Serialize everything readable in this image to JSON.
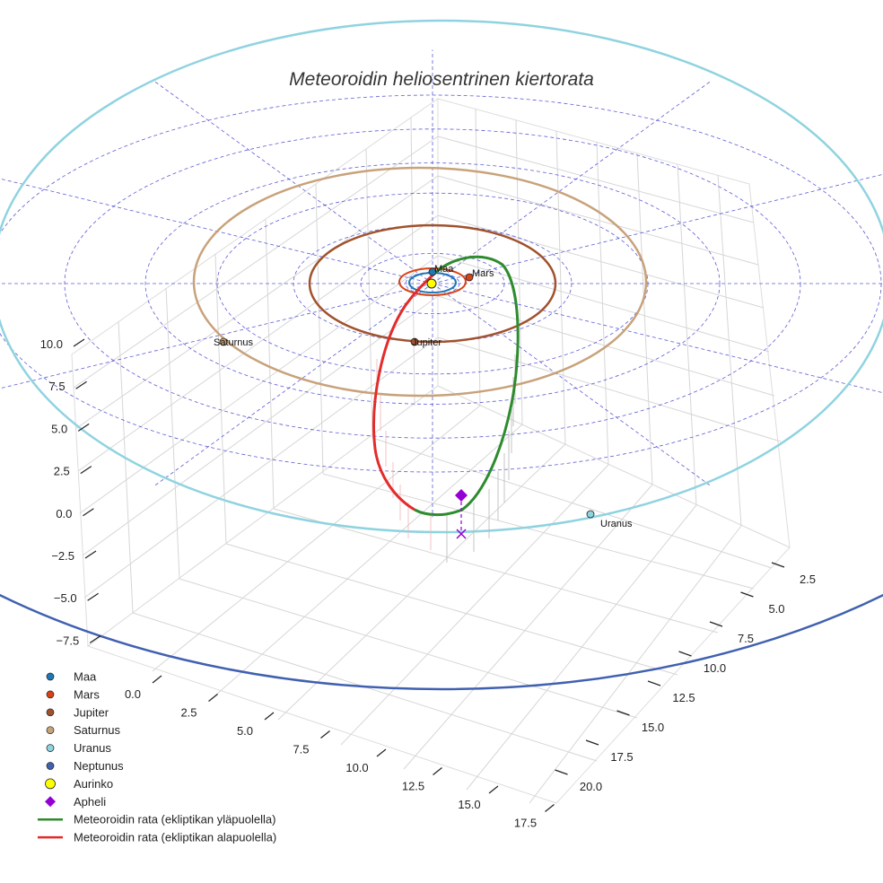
{
  "chart_data": {
    "type": "3d-orbit",
    "title": "Meteoroidin heliosentrinen kiertorata",
    "colors": {
      "Maa": "#1f77b4",
      "Mars": "#d84315",
      "Jupiter": "#a0522d",
      "Saturnus": "#c8a27a",
      "Uranus": "#8fd3e0",
      "Neptunus": "#4060b0",
      "Aurinko": "#ffff00",
      "Apheli": "#9400d3",
      "above": "#2e8b2e",
      "below": "#e32b2b",
      "grid": "#3333cc"
    },
    "planets": [
      {
        "name": "Maa",
        "label": "Maa"
      },
      {
        "name": "Mars",
        "label": "Mars"
      },
      {
        "name": "Jupiter",
        "label": "Jupiter"
      },
      {
        "name": "Saturnus",
        "label": "Saturnus"
      },
      {
        "name": "Uranus",
        "label": "Uranus"
      }
    ],
    "z_ticks": [
      "10.0",
      "7.5",
      "5.0",
      "2.5",
      "0.0",
      "−2.5",
      "−5.0",
      "−7.5"
    ],
    "x_ticks": [
      "0.0",
      "2.5",
      "5.0",
      "7.5",
      "10.0",
      "12.5",
      "15.0",
      "17.5"
    ],
    "y_ticks": [
      "2.5",
      "5.0",
      "7.5",
      "10.0",
      "12.5",
      "15.0",
      "17.5",
      "20.0"
    ],
    "legend": [
      {
        "label": "Maa",
        "type": "dot",
        "color": "#1f77b4"
      },
      {
        "label": "Mars",
        "type": "dot",
        "color": "#d84315"
      },
      {
        "label": "Jupiter",
        "type": "dot",
        "color": "#a0522d"
      },
      {
        "label": "Saturnus",
        "type": "dot",
        "color": "#c8a27a"
      },
      {
        "label": "Uranus",
        "type": "dot",
        "color": "#8fd3e0"
      },
      {
        "label": "Neptunus",
        "type": "dot",
        "color": "#4060b0"
      },
      {
        "label": "Aurinko",
        "type": "sun",
        "color": "#ffff00"
      },
      {
        "label": "Apheli",
        "type": "diamond",
        "color": "#9400d3"
      },
      {
        "label": "Meteoroidin rata (ekliptikan yläpuolella)",
        "type": "line",
        "color": "#2e8b2e"
      },
      {
        "label": "Meteoroidin rata (ekliptikan alapuolella)",
        "type": "line",
        "color": "#e32b2b"
      }
    ]
  }
}
